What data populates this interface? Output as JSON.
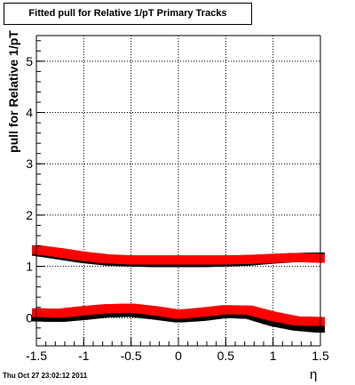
{
  "chart_data": {
    "type": "scatter",
    "title": "Fitted pull for Relative 1/pT  Primary Tracks",
    "xlabel": "η",
    "ylabel": "pull for Relative 1/pT",
    "xlim": [
      -1.5,
      1.5
    ],
    "ylim": [
      -0.55,
      5.5
    ],
    "x_ticks": [
      "-1.5",
      "-1",
      "-0.5",
      "0",
      "0.5",
      "1",
      "1.5"
    ],
    "y_ticks": [
      "0",
      "1",
      "2",
      "3",
      "4",
      "5"
    ],
    "grid": true,
    "series": [
      {
        "color": "#000000",
        "x": [
          -1.5,
          -1.25,
          -1.0,
          -0.75,
          -0.5,
          -0.25,
          0.0,
          0.25,
          0.5,
          0.75,
          1.0,
          1.25,
          1.5
        ],
        "values": [
          1.32,
          1.25,
          1.18,
          1.13,
          1.11,
          1.1,
          1.1,
          1.1,
          1.11,
          1.13,
          1.17,
          1.2,
          1.21
        ]
      },
      {
        "color": "#ff0000",
        "x": [
          -1.5,
          -1.25,
          -1.0,
          -0.75,
          -0.5,
          -0.25,
          0.0,
          0.25,
          0.5,
          0.75,
          1.0,
          1.25,
          1.5
        ],
        "values": [
          1.3,
          1.24,
          1.17,
          1.12,
          1.1,
          1.1,
          1.1,
          1.1,
          1.1,
          1.11,
          1.13,
          1.15,
          1.13
        ]
      },
      {
        "color": "#000000",
        "x": [
          -1.5,
          -1.25,
          -1.0,
          -0.75,
          -0.5,
          -0.25,
          0.0,
          0.25,
          0.5,
          0.75,
          1.0,
          1.25,
          1.5
        ],
        "values": [
          0.04,
          0.03,
          0.07,
          0.12,
          0.13,
          0.08,
          0.02,
          0.05,
          0.11,
          0.09,
          -0.05,
          -0.14,
          -0.18
        ]
      },
      {
        "color": "#ff0000",
        "x": [
          -1.5,
          -1.25,
          -1.0,
          -0.75,
          -0.5,
          -0.25,
          0.0,
          0.25,
          0.5,
          0.75,
          1.0,
          1.25,
          1.5
        ],
        "values": [
          0.07,
          0.06,
          0.11,
          0.15,
          0.16,
          0.11,
          0.04,
          0.08,
          0.13,
          0.12,
          0.0,
          -0.09,
          -0.1
        ]
      }
    ]
  },
  "timestamp": "Thu Oct 27 23:02:12 2011"
}
